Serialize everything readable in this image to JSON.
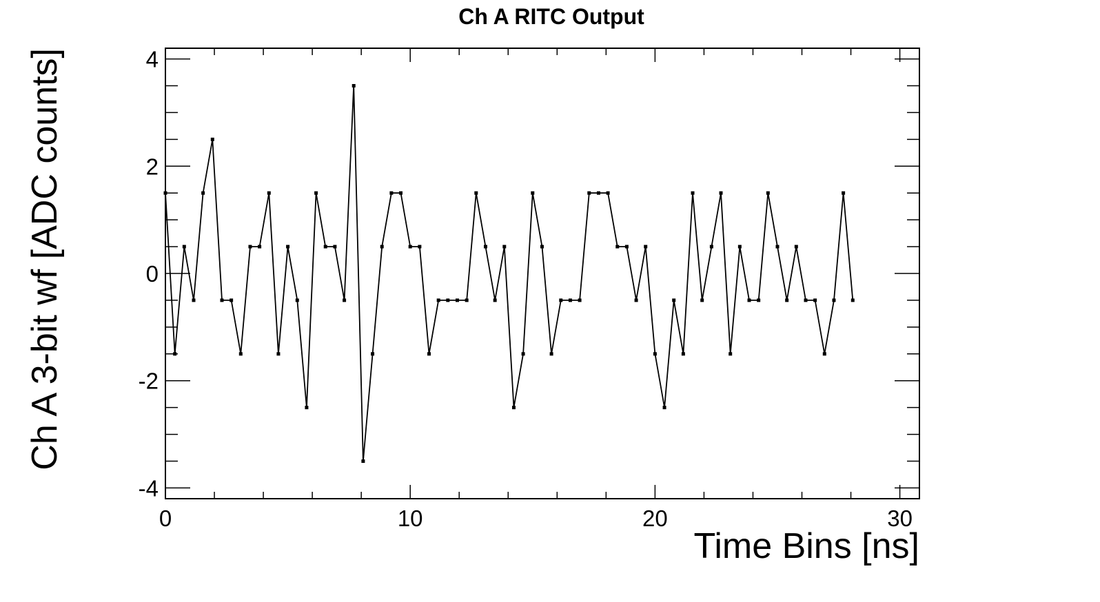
{
  "chart_data": {
    "type": "line",
    "title": "Ch A RITC Output",
    "xlabel": "Time Bins [ns]",
    "ylabel": "Ch A 3-bit wf [ADC counts]",
    "xlim": [
      0,
      30.8
    ],
    "ylim": [
      -4.2,
      4.2
    ],
    "xticks": [
      0,
      10,
      20,
      30
    ],
    "yticks": [
      -4,
      -2,
      0,
      2,
      4
    ],
    "grid": false,
    "legend": "none",
    "line_color": "#000000",
    "series": [
      {
        "x": [
          0.0,
          0.385,
          0.769,
          1.154,
          1.538,
          1.923,
          2.308,
          2.692,
          3.077,
          3.462,
          3.846,
          4.231,
          4.615,
          5.0,
          5.385,
          5.769,
          6.154,
          6.538,
          6.923,
          7.308,
          7.692,
          8.077,
          8.462,
          8.846,
          9.231,
          9.615,
          10.0,
          10.385,
          10.769,
          11.154,
          11.538,
          11.923,
          12.308,
          12.692,
          13.077,
          13.462,
          13.846,
          14.231,
          14.615,
          15.0,
          15.385,
          15.769,
          16.154,
          16.538,
          16.923,
          17.308,
          17.692,
          18.077,
          18.462,
          18.846,
          19.231,
          19.615,
          20.0,
          20.385,
          20.769,
          21.154,
          21.538,
          21.923,
          22.308,
          22.692,
          23.077,
          23.462,
          23.846,
          24.231,
          24.615,
          25.0,
          25.385,
          25.769,
          26.154,
          26.538,
          26.923,
          27.308,
          27.692,
          28.077
        ],
        "y": [
          1.5,
          -1.5,
          0.5,
          -0.5,
          1.5,
          2.5,
          -0.5,
          -0.5,
          -1.5,
          0.5,
          0.5,
          1.5,
          -1.5,
          0.5,
          -0.5,
          -2.5,
          1.5,
          0.5,
          0.5,
          -0.5,
          3.5,
          -3.5,
          -1.5,
          0.5,
          1.5,
          1.5,
          0.5,
          0.5,
          -1.5,
          -0.5,
          -0.5,
          -0.5,
          -0.5,
          1.5,
          0.5,
          -0.5,
          0.5,
          -2.5,
          -1.5,
          1.5,
          0.5,
          -1.5,
          -0.5,
          -0.5,
          -0.5,
          1.5,
          1.5,
          1.5,
          0.5,
          0.5,
          -0.5,
          0.5,
          -1.5,
          -2.5,
          -0.5,
          -1.5,
          1.5,
          -0.5,
          0.5,
          1.5,
          -1.5,
          0.5,
          -0.5,
          -0.5,
          1.5,
          0.5,
          -0.5,
          0.5,
          -0.5,
          -0.5,
          -1.5,
          -0.5,
          1.5,
          -0.5
        ]
      }
    ]
  }
}
